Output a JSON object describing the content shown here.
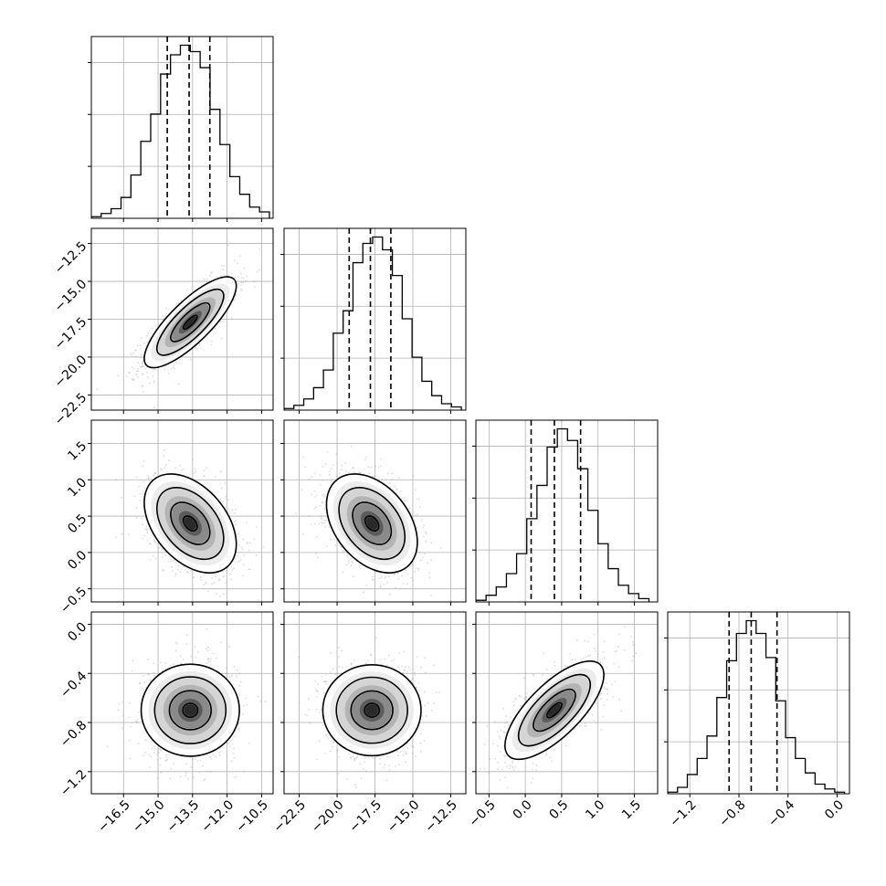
{
  "chart_data": {
    "type": "corner",
    "grid": true,
    "parameters": [
      {
        "range": [
          -17.9,
          -10.0
        ],
        "ticks": [
          -16.5,
          -15.0,
          -13.5,
          -12.0,
          -10.5
        ],
        "tick_labels": [
          "−16.5",
          "−15.0",
          "−13.5",
          "−12.0",
          "−10.5"
        ],
        "quantiles": [
          -14.6,
          -13.65,
          -12.75
        ],
        "hist_bins": [
          -17.9,
          -17.47,
          -17.04,
          -16.61,
          -16.18,
          -15.75,
          -15.32,
          -14.89,
          -14.46,
          -14.03,
          -13.6,
          -13.17,
          -12.74,
          -12.31,
          -11.88,
          -11.45,
          -11.02,
          -10.59,
          -10.16
        ],
        "hist_counts": [
          1,
          3,
          6,
          13,
          27,
          48,
          65,
          90,
          102,
          108,
          104,
          94,
          68,
          46,
          26,
          15,
          7,
          4
        ]
      },
      {
        "range": [
          -23.5,
          -11.5
        ],
        "ticks": [
          -22.5,
          -20.0,
          -17.5,
          -15.0,
          -12.5
        ],
        "tick_labels": [
          "−22.5",
          "−20.0",
          "−17.5",
          "−15.0",
          "−12.5"
        ],
        "quantiles": [
          -19.2,
          -17.8,
          -16.45
        ],
        "hist_bins": [
          -23.5,
          -22.85,
          -22.2,
          -21.55,
          -20.9,
          -20.25,
          -19.6,
          -18.95,
          -18.3,
          -17.65,
          -17.0,
          -16.35,
          -15.7,
          -15.05,
          -14.4,
          -13.75,
          -13.1,
          -12.45,
          -11.8
        ],
        "hist_counts": [
          1,
          3,
          7,
          14,
          25,
          48,
          62,
          92,
          104,
          108,
          100,
          84,
          57,
          33,
          18,
          9,
          4,
          2
        ]
      },
      {
        "range": [
          -0.68,
          1.82
        ],
        "ticks": [
          -0.5,
          0.0,
          0.5,
          1.0,
          1.5
        ],
        "tick_labels": [
          "−0.5",
          "0.0",
          "0.5",
          "1.0",
          "1.5"
        ],
        "quantiles": [
          0.08,
          0.4,
          0.76
        ],
        "hist_bins": [
          -0.68,
          -0.54,
          -0.4,
          -0.26,
          -0.12,
          0.02,
          0.16,
          0.3,
          0.44,
          0.58,
          0.72,
          0.86,
          1.0,
          1.14,
          1.28,
          1.42,
          1.56,
          1.7
        ],
        "hist_counts": [
          1,
          4,
          9,
          17,
          29,
          50,
          70,
          93,
          104,
          97,
          80,
          55,
          35,
          20,
          10,
          5,
          2
        ]
      },
      {
        "range": [
          -1.38,
          0.1
        ],
        "ticks": [
          -1.2,
          -0.8,
          -0.4,
          0.0
        ],
        "tick_labels": [
          "−1.2",
          "−0.8",
          "−0.4",
          "0.0"
        ],
        "quantiles": [
          -0.88,
          -0.7,
          -0.49
        ],
        "hist_bins": [
          -1.38,
          -1.3,
          -1.22,
          -1.14,
          -1.06,
          -0.98,
          -0.9,
          -0.82,
          -0.74,
          -0.66,
          -0.58,
          -0.5,
          -0.42,
          -0.34,
          -0.26,
          -0.18,
          -0.1,
          -0.02,
          0.06
        ],
        "hist_counts": [
          1,
          4,
          12,
          22,
          36,
          60,
          83,
          100,
          108,
          100,
          85,
          58,
          35,
          22,
          13,
          6,
          3,
          1
        ]
      }
    ],
    "pairs": [
      {
        "x": 0,
        "y": 1,
        "mean": [
          -13.6,
          -17.7
        ],
        "sd": [
          1.0,
          1.5
        ],
        "corr": 0.8
      },
      {
        "x": 0,
        "y": 2,
        "mean": [
          -13.6,
          0.4
        ],
        "sd": [
          1.0,
          0.34
        ],
        "corr": -0.42
      },
      {
        "x": 1,
        "y": 2,
        "mean": [
          -17.7,
          0.4
        ],
        "sd": [
          1.5,
          0.34
        ],
        "corr": -0.38
      },
      {
        "x": 0,
        "y": 3,
        "mean": [
          -13.6,
          -0.7
        ],
        "sd": [
          1.0,
          0.2
        ],
        "corr": 0.0
      },
      {
        "x": 1,
        "y": 3,
        "mean": [
          -17.7,
          -0.7
        ],
        "sd": [
          1.5,
          0.2
        ],
        "corr": 0.0
      },
      {
        "x": 2,
        "y": 3,
        "mean": [
          0.4,
          -0.7
        ],
        "sd": [
          0.34,
          0.2
        ],
        "corr": 0.72
      }
    ]
  }
}
